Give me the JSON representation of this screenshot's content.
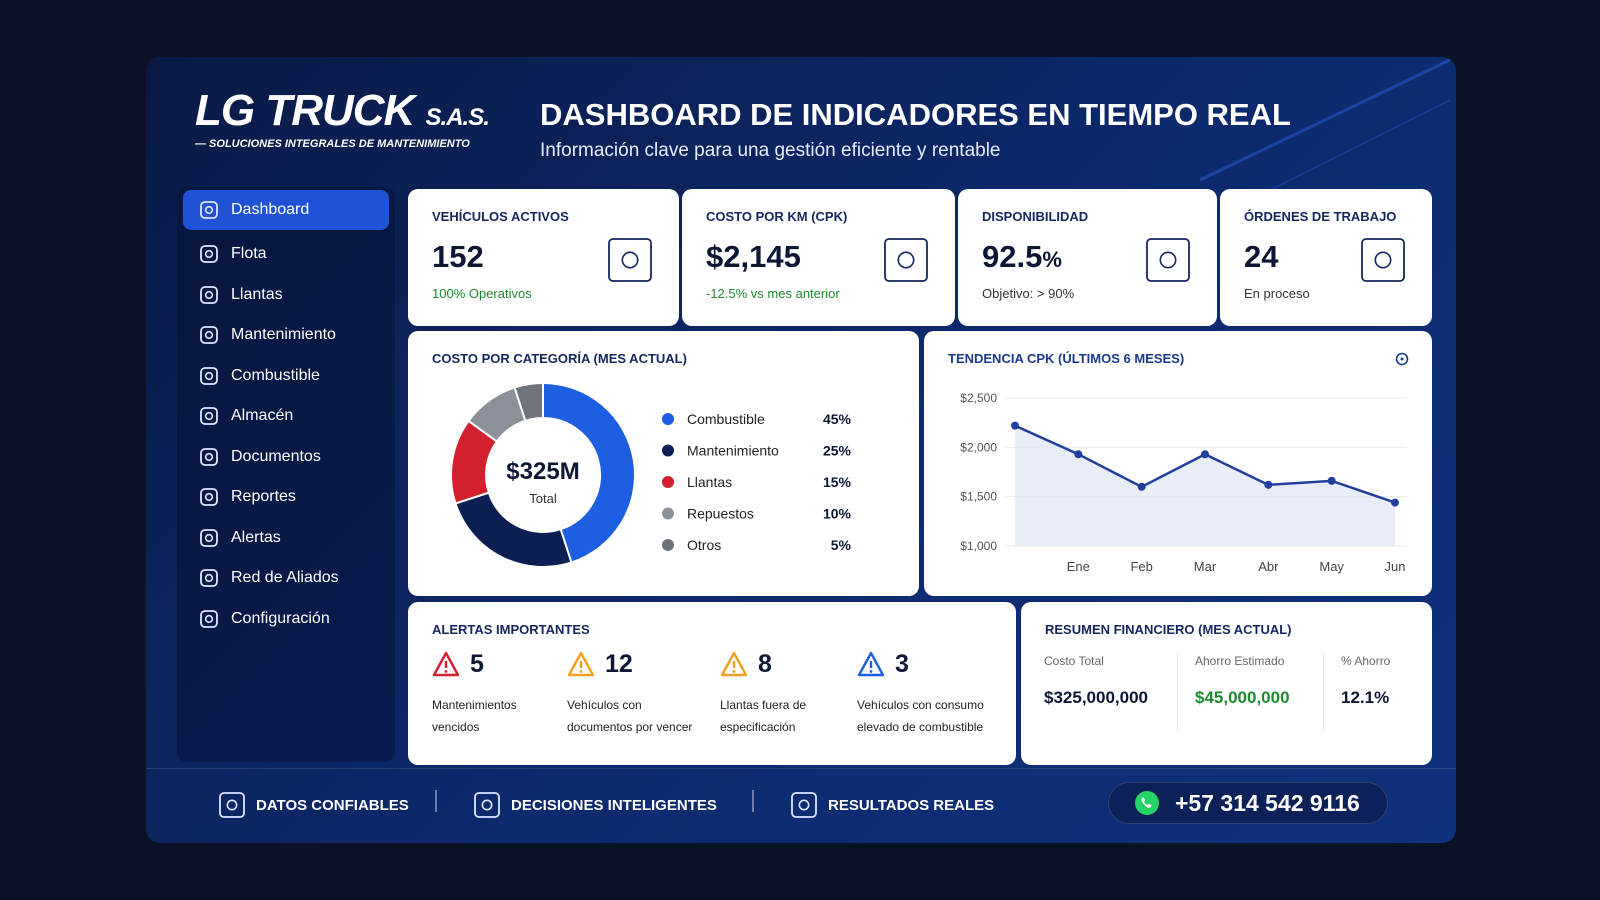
{
  "header": {
    "logo": "LG TRUCK",
    "logo_suffix": "S.A.S.",
    "tagline": "— SOLUCIONES INTEGRALES DE MANTENIMIENTO",
    "title": "DASHBOARD DE INDICADORES EN TIEMPO REAL",
    "subtitle": "Información clave para una gestión eficiente y rentable"
  },
  "sidebar": {
    "items": [
      "Dashboard",
      "Flota",
      "Llantas",
      "Mantenimiento",
      "Combustible",
      "Almacén",
      "Documentos",
      "Reportes",
      "Alertas",
      "Red de Aliados",
      "Configuración"
    ]
  },
  "kpis": [
    {
      "label": "VEHÍCULOS ACTIVOS",
      "value": "152",
      "note": "100% Operativos"
    },
    {
      "label": "COSTO POR KM (CPK)",
      "value": "$2,145",
      "note": "-12.5% vs mes anterior"
    },
    {
      "label": "DISPONIBILIDAD",
      "value": "92.5",
      "unit": "%",
      "note": "Objetivo: > 90%"
    },
    {
      "label": "ÓRDENES DE TRABAJO",
      "value": "24",
      "note": "En proceso"
    }
  ],
  "chart_data": [
    {
      "type": "donut",
      "title": "COSTO POR CATEGORÍA (MES ACTUAL)",
      "center_label": "$325M",
      "center_sublabel": "Total",
      "categories": [
        "Combustible",
        "Mantenimiento",
        "Llantas",
        "Repuestos",
        "Otros"
      ],
      "values": [
        45,
        25,
        15,
        10,
        5
      ],
      "value_labels": [
        "45%",
        "25%",
        "15%",
        "10%",
        "5%"
      ],
      "colors": [
        "#1d5fe0",
        "#0c1f52",
        "#d3202e",
        "#8b9099",
        "#6e737c"
      ]
    },
    {
      "type": "line",
      "title": "TENDENCIA CPK (ÚLTIMOS 6 MESES)",
      "categories": [
        null,
        "Ene",
        "Feb",
        "Mar",
        "Abr",
        "May",
        "Jun"
      ],
      "values": [
        2220,
        1930,
        1600,
        1930,
        1620,
        1660,
        1440
      ],
      "color": "#1f3f9e",
      "ylim": [
        1000,
        2500
      ],
      "yticks": [
        {
          "value": 1000,
          "label": "$1,000"
        },
        {
          "value": 1500,
          "label": "$1,500"
        },
        {
          "value": 2000,
          "label": "$2,000"
        },
        {
          "value": 2500,
          "label": "$2,500"
        }
      ],
      "grid": true
    }
  ],
  "alerts": {
    "title": "ALERTAS IMPORTANTES",
    "items": [
      {
        "value": "5",
        "label": "Mantenimientos vencidos"
      },
      {
        "value": "12",
        "label": "Vehículos con documentos por vencer"
      },
      {
        "value": "8",
        "label": "Llantas fuera de especificación"
      },
      {
        "value": "3",
        "label": "Vehículos con consumo elevado de combustible"
      }
    ]
  },
  "finance": {
    "title": "RESUMEN FINANCIERO (MES ACTUAL)",
    "columns": [
      {
        "label": "Costo Total",
        "value": "$325,000,000"
      },
      {
        "label": "Ahorro Estimado",
        "value": "$45,000,000"
      },
      {
        "label": "% Ahorro",
        "value": "12.1%"
      }
    ]
  },
  "footer": {
    "items": [
      "DATOS CONFIABLES",
      "DECISIONES INTELIGENTES",
      "RESULTADOS REALES"
    ],
    "phone": "+57 314 542 9116"
  }
}
